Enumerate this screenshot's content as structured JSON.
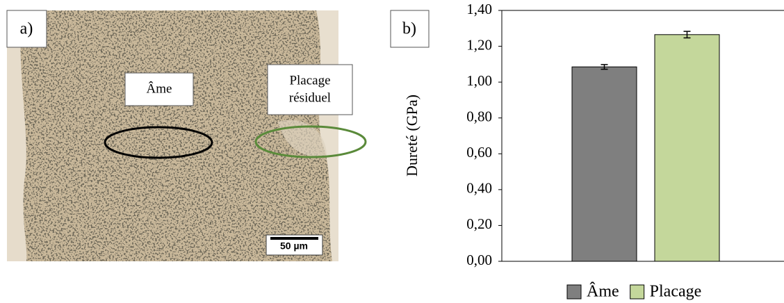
{
  "panel_a": {
    "label": "a)",
    "core_label": "Âme",
    "cladding_label": [
      "Placage",
      "résiduel"
    ],
    "scale_bar": "50 µm"
  },
  "chart_data": {
    "type": "bar",
    "panel_label": "b)",
    "y_label": "Dureté (GPa)",
    "categories": [
      null
    ],
    "series": [
      {
        "name": "Âme",
        "color": "#7f7f7f",
        "values": [
          1.085
        ],
        "errors": [
          0.013
        ]
      },
      {
        "name": "Placage",
        "color": "#c4d79b",
        "values": [
          1.265
        ],
        "errors": [
          0.018
        ]
      }
    ],
    "ylim": [
      0,
      1.4
    ],
    "yticks": [
      {
        "value": 0,
        "label": "0,00"
      },
      {
        "value": 0.2,
        "label": "0,20"
      },
      {
        "value": 0.4,
        "label": "0,40"
      },
      {
        "value": 0.6,
        "label": "0,60"
      },
      {
        "value": 0.8,
        "label": "0,80"
      },
      {
        "value": 1.0,
        "label": "1,00"
      },
      {
        "value": 1.2,
        "label": "1,20"
      },
      {
        "value": 1.4,
        "label": "1,40"
      }
    ],
    "grid": false,
    "legend": "bottom"
  }
}
